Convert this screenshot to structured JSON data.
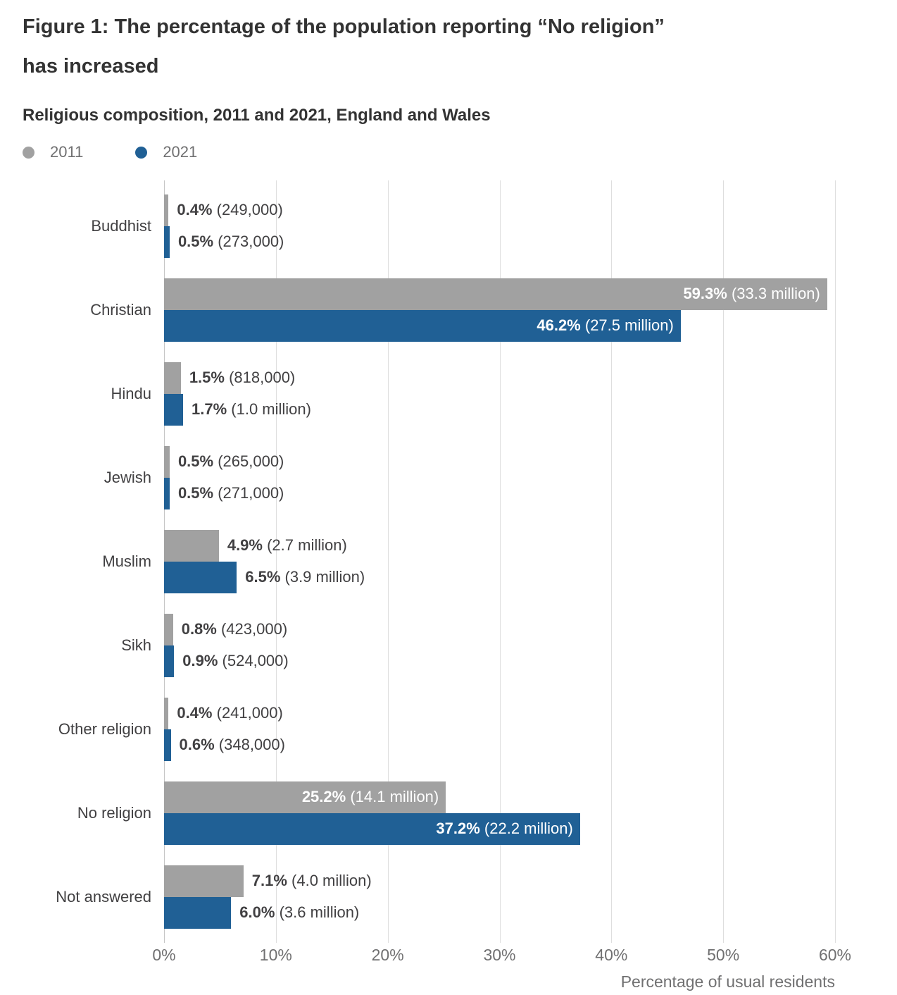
{
  "figure": {
    "title_line1": "Figure 1: The percentage of the population reporting “No religion”",
    "title_line2": "has increased",
    "subtitle": "Religious composition, 2011 and 2021, England and Wales"
  },
  "legend": [
    {
      "label": "2011",
      "color": "#a1a1a1"
    },
    {
      "label": "2021",
      "color": "#206095"
    }
  ],
  "chart_data": {
    "type": "bar",
    "orientation": "horizontal",
    "title": "Figure 1: The percentage of the population reporting “No religion” has increased",
    "subtitle": "Religious composition, 2011 and 2021, England and Wales",
    "xlabel": "Percentage of usual residents",
    "xlim": [
      0,
      60
    ],
    "xticks": [
      "0%",
      "10%",
      "20%",
      "30%",
      "40%",
      "50%",
      "60%"
    ],
    "grid": true,
    "legend_position": "top-left",
    "categories": [
      "Buddhist",
      "Christian",
      "Hindu",
      "Jewish",
      "Muslim",
      "Sikh",
      "Other religion",
      "No religion",
      "Not answered"
    ],
    "series": [
      {
        "name": "2011",
        "color": "#a1a1a1",
        "values": [
          0.4,
          59.3,
          1.5,
          0.5,
          4.9,
          0.8,
          0.4,
          25.2,
          7.1
        ],
        "value_labels": [
          "0.4%",
          "59.3%",
          "1.5%",
          "0.5%",
          "4.9%",
          "0.8%",
          "0.4%",
          "25.2%",
          "7.1%"
        ],
        "count_labels": [
          "(249,000)",
          "(33.3 million)",
          "(818,000)",
          "(265,000)",
          "(2.7 million)",
          "(423,000)",
          "(241,000)",
          "(14.1 million)",
          "(4.0 million)"
        ]
      },
      {
        "name": "2021",
        "color": "#206095",
        "values": [
          0.5,
          46.2,
          1.7,
          0.5,
          6.5,
          0.9,
          0.6,
          37.2,
          6.0
        ],
        "value_labels": [
          "0.5%",
          "46.2%",
          "1.7%",
          "0.5%",
          "6.5%",
          "0.9%",
          "0.6%",
          "37.2%",
          "6.0%"
        ],
        "count_labels": [
          "(273,000)",
          "(27.5 million)",
          "(1.0 million)",
          "(271,000)",
          "(3.9 million)",
          "(524,000)",
          "(348,000)",
          "(22.2 million)",
          "(3.6 million)"
        ]
      }
    ]
  }
}
